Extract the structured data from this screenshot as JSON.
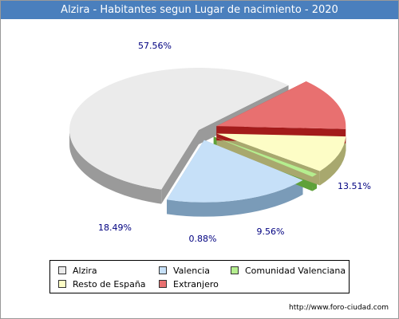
{
  "chart_data": {
    "type": "pie",
    "title": "Alzira - Habitantes segun Lugar de nacimiento - 2020",
    "categories": [
      "Alzira",
      "Valencia",
      "Comunidad Valenciana",
      "Resto de España",
      "Extranjero"
    ],
    "values": [
      57.56,
      18.49,
      0.88,
      9.56,
      13.51
    ],
    "value_labels": [
      "57.56%",
      "18.49%",
      "0.88%",
      "9.56%",
      "13.51%"
    ],
    "colors": [
      "#ebebeb",
      "#c6e0f8",
      "#b5ee8f",
      "#fdfdc6",
      "#e87070"
    ],
    "side_colors": [
      "#9a9a9a",
      "#7a9bb8",
      "#5fa13a",
      "#a8a86e",
      "#a31b1b"
    ],
    "exploded": [
      false,
      true,
      true,
      true,
      true
    ],
    "legend_placement": "bottom"
  },
  "footer": {
    "url": "http://www.foro-ciudad.com"
  }
}
